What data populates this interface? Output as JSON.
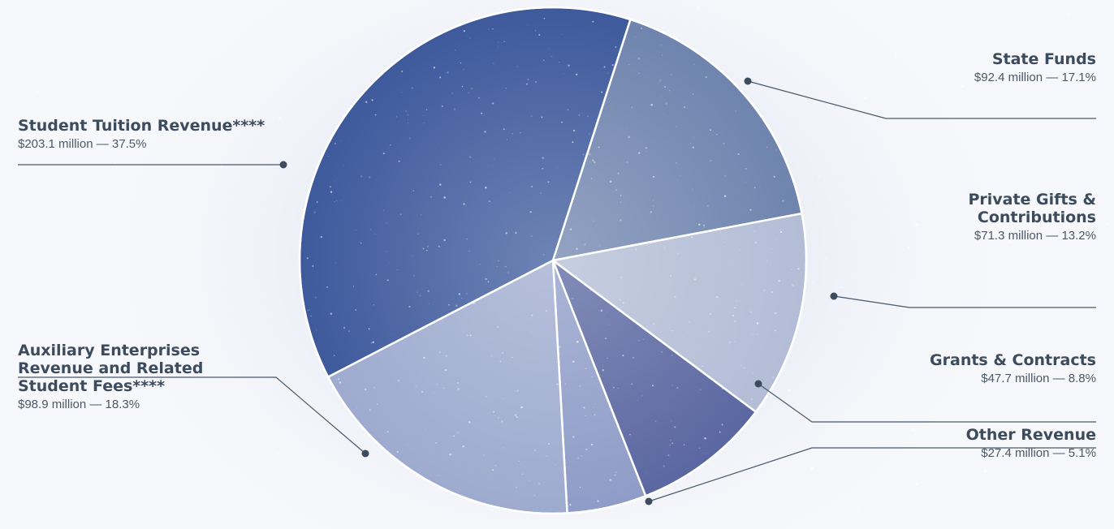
{
  "chart_data": {
    "type": "pie",
    "slices": [
      {
        "label": "State Funds",
        "value": 92.4,
        "display": "$92.4 million — 17.1%",
        "percent": 17.1
      },
      {
        "label": "Private Gifts & Contributions",
        "label_lines": [
          "Private Gifts &",
          "Contributions"
        ],
        "value": 71.3,
        "display": "$71.3 million — 13.2%",
        "percent": 13.2
      },
      {
        "label": "Grants & Contracts",
        "value": 47.7,
        "display": "$47.7 million — 8.8%",
        "percent": 8.8
      },
      {
        "label": "Other Revenue",
        "value": 27.4,
        "display": "$27.4 million — 5.1%",
        "percent": 5.1
      },
      {
        "label": "Auxiliary Enterprises Revenue and Related Student Fees****",
        "label_lines": [
          "Auxiliary Enterprises",
          "Revenue and Related",
          "Student Fees****"
        ],
        "value": 98.9,
        "display": "$98.9 million — 18.3%",
        "percent": 18.3
      },
      {
        "label": "Student Tuition Revenue****",
        "value": 203.1,
        "display": "$203.1 million — 37.5%",
        "percent": 37.5
      }
    ],
    "colors": [
      "#6f84ae",
      "#b3bdd6",
      "#5a67a1",
      "#8e9cc7",
      "#9eabcf",
      "#3e5a9c"
    ],
    "legend": "callouts"
  }
}
